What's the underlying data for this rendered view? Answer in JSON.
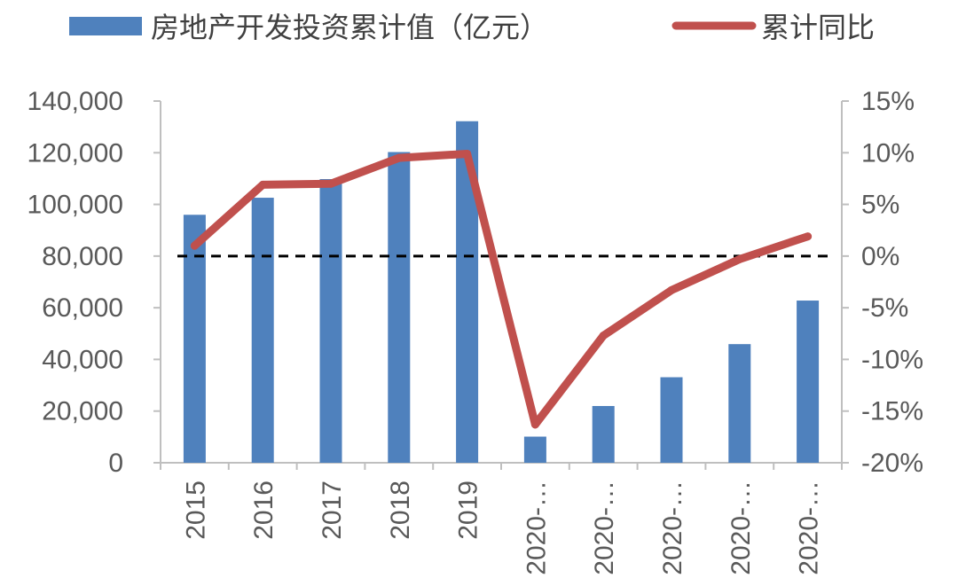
{
  "chart_data": {
    "type": "bar",
    "categories": [
      "2015",
      "2016",
      "2017",
      "2018",
      "2019",
      "2020-…",
      "2020-…",
      "2020-…",
      "2020-…",
      "2020-…"
    ],
    "series": [
      {
        "name": "房地产开发投资累计值（亿元）",
        "type": "bar",
        "axis": "left",
        "color": "#4f81bd",
        "values": [
          95979,
          102581,
          109799,
          120264,
          132194,
          10115,
          21963,
          33103,
          45920,
          62780
        ]
      },
      {
        "name": "累计同比",
        "type": "line",
        "axis": "right",
        "unit": "%",
        "color": "#c0504d",
        "values": [
          1.0,
          6.9,
          7.0,
          9.5,
          9.9,
          -16.3,
          -7.7,
          -3.3,
          -0.3,
          1.9
        ]
      }
    ],
    "y_left": {
      "lim": [
        0,
        140000
      ],
      "ticks": [
        "0",
        "20,000",
        "40,000",
        "60,000",
        "80,000",
        "100,000",
        "120,000",
        "140,000"
      ]
    },
    "y_right": {
      "lim": [
        -20,
        15
      ],
      "ticks": [
        "-20%",
        "-15%",
        "-10%",
        "-5%",
        "0%",
        "5%",
        "10%",
        "15%"
      ]
    },
    "reference_line": {
      "axis": "right",
      "value": 0,
      "style": "dashed",
      "color": "#000000"
    },
    "legend": {
      "position": "top"
    },
    "grid": false
  }
}
